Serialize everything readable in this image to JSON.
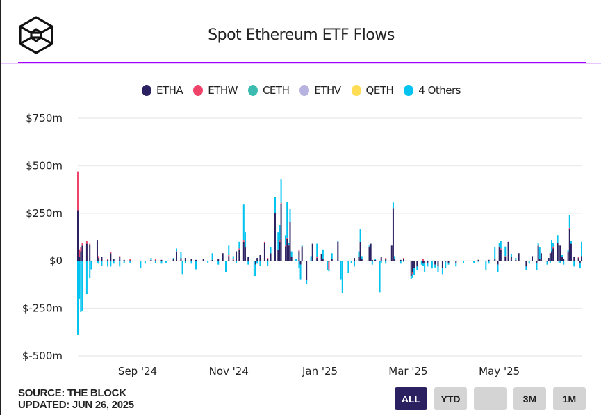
{
  "header": {
    "title": "Spot Ethereum ETF Flows",
    "logo": "The Block"
  },
  "legend": [
    {
      "name": "ETHA",
      "color": "#2b2160"
    },
    {
      "name": "ETHW",
      "color": "#f0436a"
    },
    {
      "name": "CETH",
      "color": "#3cbcb0"
    },
    {
      "name": "ETHV",
      "color": "#b8b2e0"
    },
    {
      "name": "QETH",
      "color": "#ffdd55"
    },
    {
      "name": "4 Others",
      "color": "#00c3f0"
    }
  ],
  "footer": {
    "source": "SOURCE: THE BLOCK",
    "updated": "UPDATED: JUN 26, 2025"
  },
  "range_buttons": [
    {
      "label": "ALL",
      "active": true
    },
    {
      "label": "YTD",
      "active": false
    },
    {
      "label": "",
      "active": false
    },
    {
      "label": "3M",
      "active": false
    },
    {
      "label": "1M",
      "active": false
    }
  ],
  "chart_data": {
    "type": "bar",
    "stacked": true,
    "title": "Spot Ethereum ETF Flows",
    "xlabel": "",
    "ylabel": "",
    "ylim": [
      -500,
      750
    ],
    "yticks": [
      "$-500m",
      "$-250m",
      "$0",
      "$250m",
      "$500m",
      "$750m"
    ],
    "ytick_values": [
      -500,
      -250,
      0,
      250,
      500,
      750
    ],
    "xticks": [
      {
        "label": "Sep '24",
        "date": "2024-09-01"
      },
      {
        "label": "Nov '24",
        "date": "2024-11-01"
      },
      {
        "label": "Jan '25",
        "date": "2025-01-01"
      },
      {
        "label": "Mar '25",
        "date": "2025-03-01"
      },
      {
        "label": "May '25",
        "date": "2025-05-01"
      }
    ],
    "xrange": [
      "2024-07-23",
      "2025-06-25"
    ],
    "grid": true,
    "legend_position": "top",
    "units": "USD millions",
    "series_order": [
      "ETHA",
      "ETHW",
      "4 Others"
    ],
    "points": [
      [
        "2024-07-23",
        266,
        204,
        -390
      ],
      [
        "2024-07-24",
        20,
        40,
        -200
      ],
      [
        "2024-07-25",
        50,
        20,
        -270
      ],
      [
        "2024-07-26",
        80,
        15,
        -263
      ],
      [
        "2024-07-29",
        90,
        15,
        -175
      ],
      [
        "2024-07-31",
        85,
        5,
        -91
      ],
      [
        "2024-08-01",
        0,
        0,
        -45
      ],
      [
        "2024-08-05",
        110,
        0,
        -10
      ],
      [
        "2024-08-06",
        15,
        10,
        -15
      ],
      [
        "2024-08-08",
        20,
        0,
        -25
      ],
      [
        "2024-08-12",
        5,
        5,
        -30
      ],
      [
        "2024-08-14",
        40,
        5,
        -30
      ],
      [
        "2024-08-16",
        10,
        0,
        -15
      ],
      [
        "2024-08-20",
        20,
        5,
        -30
      ],
      [
        "2024-08-23",
        5,
        0,
        -10
      ],
      [
        "2024-08-27",
        3,
        5,
        -10
      ],
      [
        "2024-09-03",
        0,
        0,
        -40
      ],
      [
        "2024-09-06",
        0,
        0,
        -15
      ],
      [
        "2024-09-10",
        5,
        0,
        10
      ],
      [
        "2024-09-13",
        3,
        5,
        -12
      ],
      [
        "2024-09-17",
        5,
        0,
        -15
      ],
      [
        "2024-09-20",
        0,
        0,
        -10
      ],
      [
        "2024-09-25",
        10,
        0,
        5
      ],
      [
        "2024-09-27",
        45,
        5,
        15
      ],
      [
        "2024-09-30",
        15,
        0,
        30
      ],
      [
        "2024-10-01",
        0,
        0,
        -70
      ],
      [
        "2024-10-03",
        15,
        0,
        -10
      ],
      [
        "2024-10-07",
        10,
        0,
        -15
      ],
      [
        "2024-10-10",
        5,
        0,
        -45
      ],
      [
        "2024-10-15",
        10,
        0,
        0
      ],
      [
        "2024-10-18",
        0,
        0,
        -10
      ],
      [
        "2024-10-21",
        5,
        0,
        35
      ],
      [
        "2024-10-25",
        10,
        0,
        -20
      ],
      [
        "2024-10-28",
        40,
        0,
        0
      ],
      [
        "2024-10-30",
        0,
        0,
        -60
      ],
      [
        "2024-11-01",
        25,
        5,
        50
      ],
      [
        "2024-11-04",
        5,
        5,
        15
      ],
      [
        "2024-11-06",
        50,
        0,
        -10
      ],
      [
        "2024-11-08",
        60,
        5,
        35
      ],
      [
        "2024-11-11",
        100,
        10,
        186
      ],
      [
        "2024-11-12",
        70,
        0,
        80
      ],
      [
        "2024-11-14",
        20,
        0,
        -20
      ],
      [
        "2024-11-18",
        0,
        0,
        -80
      ],
      [
        "2024-11-19",
        -20,
        0,
        -60
      ],
      [
        "2024-11-20",
        15,
        0,
        -15
      ],
      [
        "2024-11-22",
        30,
        0,
        -25
      ],
      [
        "2024-11-25",
        95,
        5,
        0
      ],
      [
        "2024-11-27",
        10,
        5,
        -25
      ],
      [
        "2024-11-29",
        40,
        0,
        30
      ],
      [
        "2024-12-02",
        252,
        0,
        84
      ],
      [
        "2024-12-04",
        60,
        0,
        90
      ],
      [
        "2024-12-05",
        100,
        10,
        80
      ],
      [
        "2024-12-06",
        300,
        5,
        123
      ],
      [
        "2024-12-09",
        75,
        5,
        55
      ],
      [
        "2024-12-10",
        115,
        5,
        190
      ],
      [
        "2024-12-11",
        80,
        5,
        10
      ],
      [
        "2024-12-12",
        204,
        0,
        70
      ],
      [
        "2024-12-13",
        20,
        0,
        30
      ],
      [
        "2024-12-16",
        0,
        0,
        10
      ],
      [
        "2024-12-18",
        50,
        5,
        -40
      ],
      [
        "2024-12-19",
        -20,
        0,
        -80
      ],
      [
        "2024-12-20",
        70,
        5,
        5
      ],
      [
        "2024-12-23",
        -102,
        0,
        -20
      ],
      [
        "2024-12-26",
        0,
        0,
        25
      ],
      [
        "2024-12-27",
        90,
        0,
        0
      ],
      [
        "2024-12-30",
        15,
        5,
        70
      ],
      [
        "2025-01-02",
        35,
        0,
        0
      ],
      [
        "2025-01-03",
        10,
        0,
        50
      ],
      [
        "2025-01-06",
        0,
        0,
        -50
      ],
      [
        "2025-01-07",
        -5,
        -40,
        -10
      ],
      [
        "2025-01-09",
        10,
        0,
        30
      ],
      [
        "2025-01-13",
        100,
        0,
        5
      ],
      [
        "2025-01-15",
        0,
        0,
        -100
      ],
      [
        "2025-01-16",
        0,
        0,
        -170
      ],
      [
        "2025-01-20",
        0,
        0,
        -65
      ],
      [
        "2025-01-22",
        0,
        0,
        -10
      ],
      [
        "2025-01-24",
        15,
        0,
        -30
      ],
      [
        "2025-01-27",
        20,
        0,
        30
      ],
      [
        "2025-01-28",
        100,
        0,
        65
      ],
      [
        "2025-01-29",
        10,
        0,
        15
      ],
      [
        "2025-02-03",
        70,
        5,
        5
      ],
      [
        "2025-02-04",
        90,
        0,
        0
      ],
      [
        "2025-02-05",
        5,
        0,
        -20
      ],
      [
        "2025-02-07",
        5,
        0,
        5
      ],
      [
        "2025-02-10",
        0,
        0,
        -165
      ],
      [
        "2025-02-11",
        20,
        0,
        -10
      ],
      [
        "2025-02-14",
        10,
        5,
        -15
      ],
      [
        "2025-02-18",
        80,
        0,
        0
      ],
      [
        "2025-02-19",
        277,
        0,
        30
      ],
      [
        "2025-02-20",
        10,
        0,
        15
      ],
      [
        "2025-02-24",
        5,
        0,
        -15
      ],
      [
        "2025-02-26",
        10,
        5,
        -5
      ],
      [
        "2025-03-03",
        -80,
        0,
        -15
      ],
      [
        "2025-03-04",
        -60,
        -10,
        -20
      ],
      [
        "2025-03-05",
        -40,
        0,
        -35
      ],
      [
        "2025-03-07",
        -30,
        0,
        -20
      ],
      [
        "2025-03-10",
        0,
        0,
        -20
      ],
      [
        "2025-03-11",
        -15,
        10,
        -10
      ],
      [
        "2025-03-12",
        -10,
        0,
        -50
      ],
      [
        "2025-03-14",
        -10,
        0,
        -20
      ],
      [
        "2025-03-17",
        0,
        0,
        -40
      ],
      [
        "2025-03-19",
        -20,
        0,
        -15
      ],
      [
        "2025-03-21",
        -30,
        0,
        -30
      ],
      [
        "2025-03-24",
        -40,
        0,
        -30
      ],
      [
        "2025-03-26",
        -5,
        0,
        -35
      ],
      [
        "2025-03-28",
        -10,
        0,
        -10
      ],
      [
        "2025-04-02",
        -10,
        0,
        -20
      ],
      [
        "2025-04-07",
        0,
        0,
        -10
      ],
      [
        "2025-04-14",
        0,
        0,
        -10
      ],
      [
        "2025-04-17",
        5,
        0,
        -5
      ],
      [
        "2025-04-22",
        0,
        0,
        -50
      ],
      [
        "2025-04-24",
        5,
        0,
        -15
      ],
      [
        "2025-04-28",
        10,
        0,
        60
      ],
      [
        "2025-04-30",
        -20,
        0,
        -40
      ],
      [
        "2025-05-01",
        70,
        5,
        20
      ],
      [
        "2025-05-02",
        60,
        5,
        40
      ],
      [
        "2025-05-05",
        20,
        5,
        50
      ],
      [
        "2025-05-07",
        100,
        0,
        0
      ],
      [
        "2025-05-09",
        20,
        0,
        15
      ],
      [
        "2025-05-12",
        5,
        0,
        10
      ],
      [
        "2025-05-14",
        40,
        0,
        0
      ],
      [
        "2025-05-19",
        -30,
        0,
        -20
      ],
      [
        "2025-05-21",
        0,
        0,
        -15
      ],
      [
        "2025-05-23",
        25,
        0,
        0
      ],
      [
        "2025-05-26",
        -10,
        0,
        -40
      ],
      [
        "2025-05-27",
        80,
        0,
        15
      ],
      [
        "2025-05-28",
        10,
        0,
        60
      ],
      [
        "2025-05-29",
        40,
        0,
        0
      ],
      [
        "2025-06-02",
        -5,
        0,
        -15
      ],
      [
        "2025-06-03",
        15,
        0,
        0
      ],
      [
        "2025-06-04",
        40,
        0,
        -10
      ],
      [
        "2025-06-05",
        50,
        0,
        60
      ],
      [
        "2025-06-06",
        65,
        10,
        20
      ],
      [
        "2025-06-09",
        95,
        0,
        40
      ],
      [
        "2025-06-10",
        80,
        0,
        -10
      ],
      [
        "2025-06-11",
        80,
        0,
        -10
      ],
      [
        "2025-06-12",
        20,
        0,
        10
      ],
      [
        "2025-06-13",
        10,
        0,
        -20
      ],
      [
        "2025-06-16",
        45,
        0,
        10
      ],
      [
        "2025-06-17",
        168,
        5,
        68
      ],
      [
        "2025-06-18",
        90,
        0,
        15
      ],
      [
        "2025-06-20",
        20,
        0,
        -30
      ],
      [
        "2025-06-23",
        15,
        5,
        0
      ],
      [
        "2025-06-24",
        -10,
        0,
        -30
      ],
      [
        "2025-06-25",
        25,
        0,
        75
      ]
    ]
  }
}
